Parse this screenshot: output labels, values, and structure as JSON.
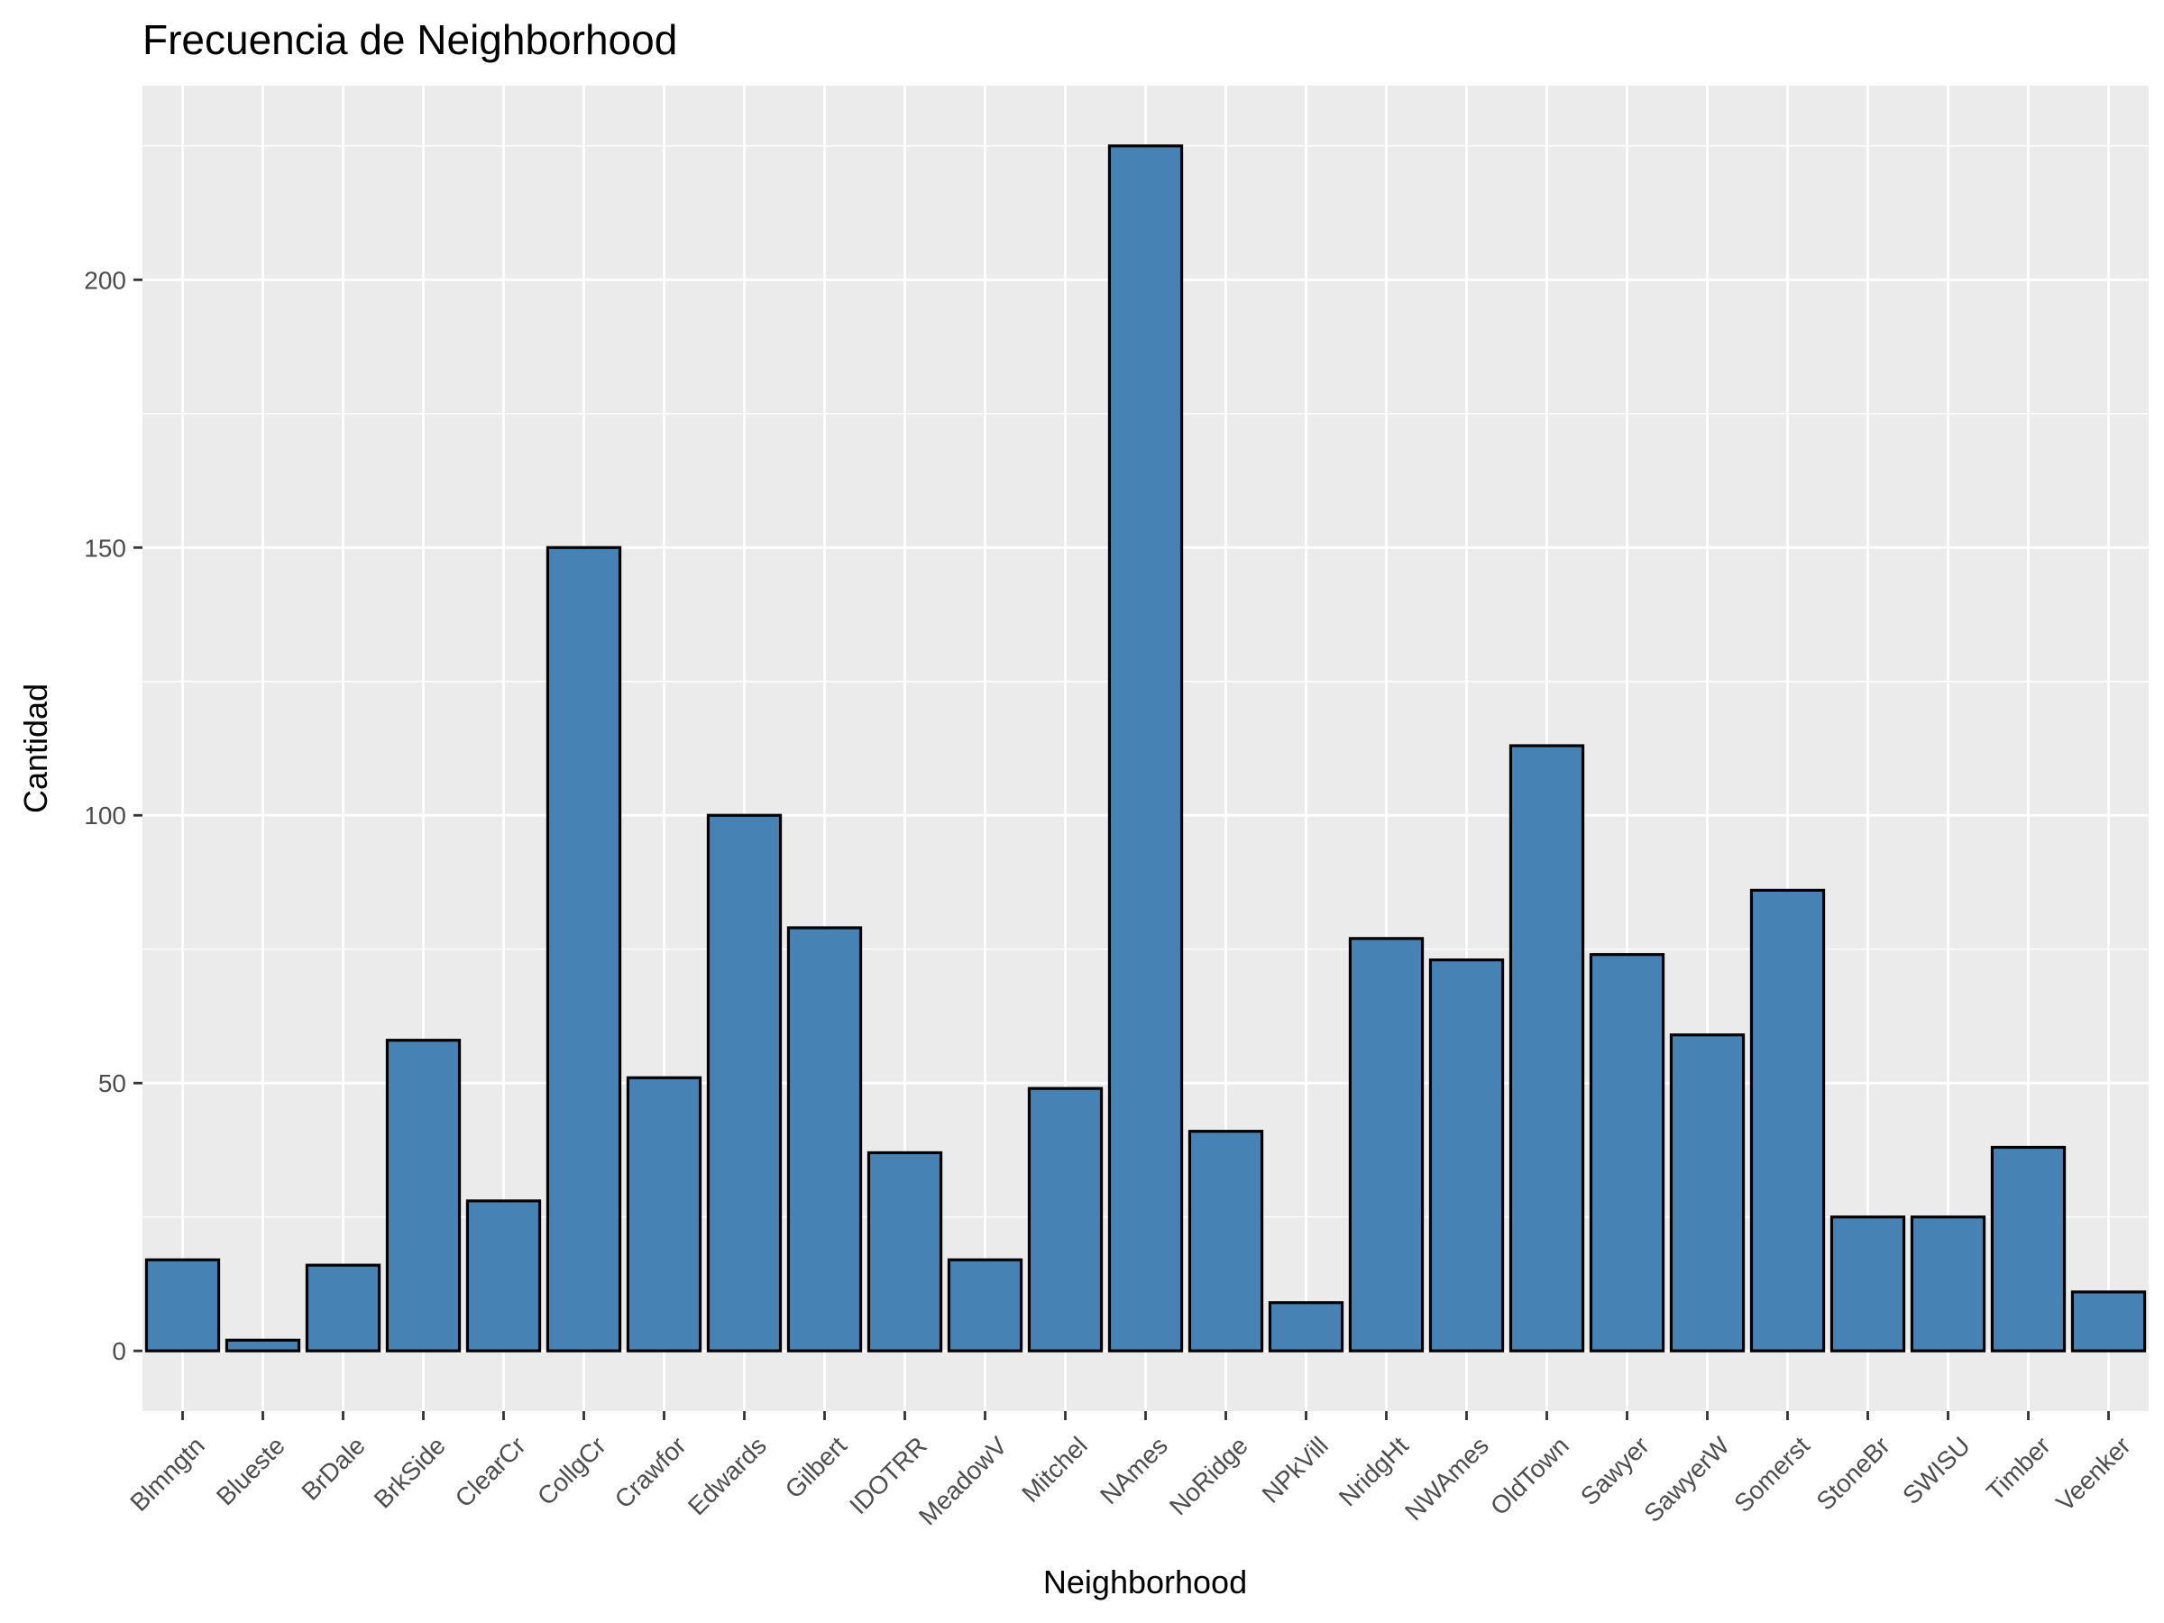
{
  "chart_data": {
    "type": "bar",
    "title": "Frecuencia de Neighborhood",
    "xlabel": "Neighborhood",
    "ylabel": "Cantidad",
    "categories": [
      "Blmngtn",
      "Blueste",
      "BrDale",
      "BrkSide",
      "ClearCr",
      "CollgCr",
      "Crawfor",
      "Edwards",
      "Gilbert",
      "IDOTRR",
      "MeadowV",
      "Mitchel",
      "NAmes",
      "NoRidge",
      "NPkVill",
      "NridgHt",
      "NWAmes",
      "OldTown",
      "Sawyer",
      "SawyerW",
      "Somerst",
      "StoneBr",
      "SWISU",
      "Timber",
      "Veenker"
    ],
    "values": [
      17,
      2,
      16,
      58,
      28,
      150,
      51,
      100,
      79,
      37,
      17,
      49,
      225,
      41,
      9,
      77,
      73,
      113,
      74,
      59,
      86,
      25,
      25,
      38,
      11
    ],
    "ylim": [
      -11.25,
      236.25
    ],
    "yticks": [
      0,
      50,
      100,
      150,
      200
    ],
    "grid": true,
    "legend": "none",
    "colors": {
      "bar_fill": "#4682B4",
      "bar_stroke": "#000000",
      "panel_background": "#EBEBEB",
      "gridline": "#FFFFFF"
    }
  }
}
